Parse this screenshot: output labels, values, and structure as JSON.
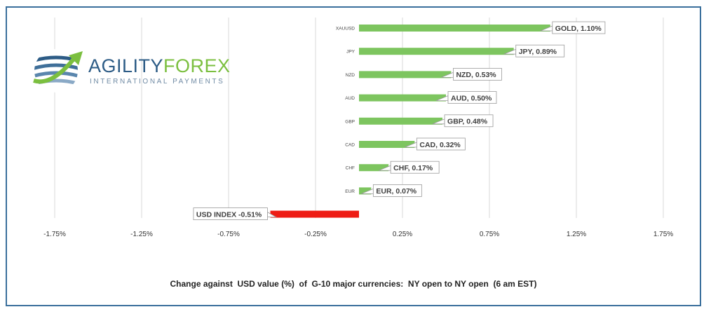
{
  "brand": {
    "name_part1": "AGILITY",
    "name_part2": "FOREX",
    "tagline": "INTERNATIONAL PAYMENTS"
  },
  "caption": "Change against  USD value (%)  of  G-10 major currencies:  NY open to NY open  (6 am EST)",
  "colors": {
    "positive": "#7dc55f",
    "negative": "#ee1c14",
    "frame": "#3a6f9c",
    "grid": "#d9d9d9"
  },
  "chart_data": {
    "type": "bar",
    "orientation": "horizontal",
    "categories": [
      "XAUUSD",
      "JPY",
      "NZD",
      "AUD",
      "GBP",
      "CAD",
      "CHF",
      "EUR",
      ""
    ],
    "values": [
      1.1,
      0.89,
      0.53,
      0.5,
      0.48,
      0.32,
      0.17,
      0.07,
      -0.51
    ],
    "data_labels": [
      "GOLD, 1.10%",
      "JPY, 0.89%",
      "NZD, 0.53%",
      "AUD, 0.50%",
      "GBP, 0.48%",
      "CAD, 0.32%",
      "CHF, 0.17%",
      "EUR, 0.07%",
      "USD INDEX -0.51%"
    ],
    "xlim": [
      -2.0,
      2.0
    ],
    "xticks": [
      -1.75,
      -1.25,
      -0.75,
      -0.25,
      0.25,
      0.75,
      1.25,
      1.75
    ],
    "xtick_labels": [
      "-1.75%",
      "-1.25%",
      "-0.75%",
      "-0.25%",
      "0.25%",
      "0.75%",
      "1.25%",
      "1.75%"
    ],
    "grid": true
  }
}
